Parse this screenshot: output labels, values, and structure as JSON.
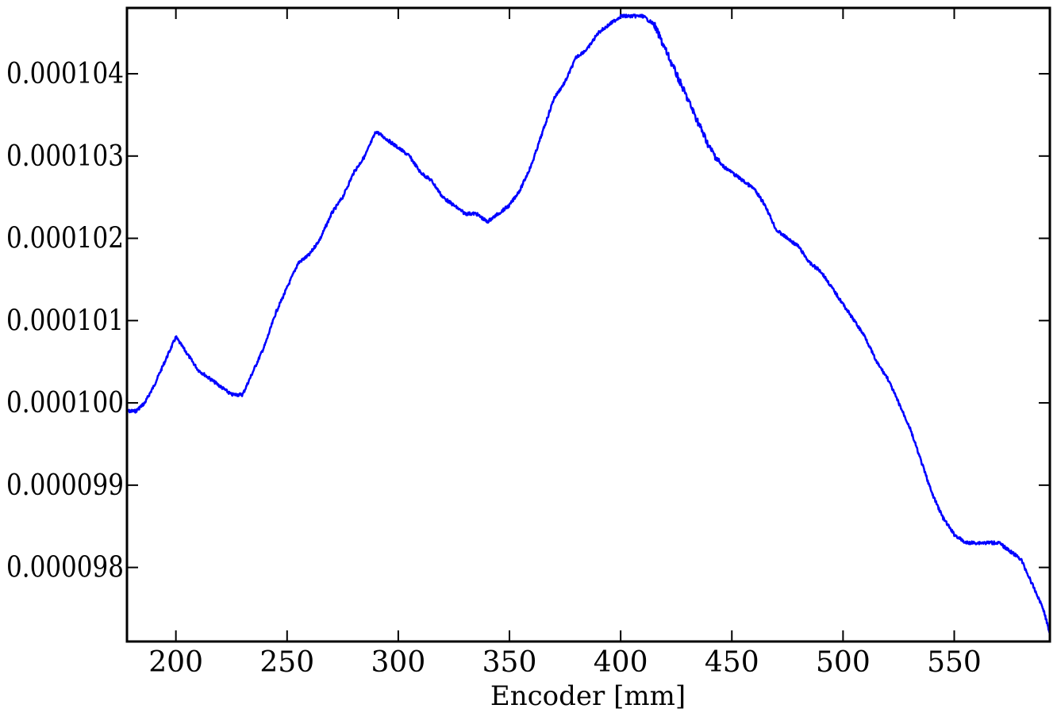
{
  "chart_data": {
    "type": "line",
    "title": "",
    "xlabel": "Encoder [mm]",
    "ylabel": "",
    "xlim": [
      178,
      593
    ],
    "ylim": [
      9.71e-05,
      0.0001048
    ],
    "x_ticks": [
      {
        "value": 200,
        "label": "200"
      },
      {
        "value": 250,
        "label": "250"
      },
      {
        "value": 300,
        "label": "300"
      },
      {
        "value": 350,
        "label": "350"
      },
      {
        "value": 400,
        "label": "400"
      },
      {
        "value": 450,
        "label": "450"
      },
      {
        "value": 500,
        "label": "500"
      },
      {
        "value": 550,
        "label": "550"
      }
    ],
    "y_ticks": [
      {
        "value": 9.8e-05,
        "label": "0.000098"
      },
      {
        "value": 9.9e-05,
        "label": "0.000099"
      },
      {
        "value": 0.0001,
        "label": "0.000100"
      },
      {
        "value": 0.000101,
        "label": "0.000101"
      },
      {
        "value": 0.000102,
        "label": "0.000102"
      },
      {
        "value": 0.000103,
        "label": "0.000103"
      },
      {
        "value": 0.000104,
        "label": "0.000104"
      }
    ],
    "grid": false,
    "legend": "none",
    "series": [
      {
        "color": "#0000ff",
        "x": [
          178,
          182,
          186,
          190,
          195,
          200,
          205,
          210,
          215,
          220,
          225,
          230,
          235,
          240,
          245,
          250,
          255,
          260,
          265,
          270,
          275,
          280,
          285,
          290,
          295,
          300,
          305,
          310,
          315,
          320,
          325,
          330,
          335,
          340,
          345,
          350,
          355,
          360,
          365,
          370,
          375,
          380,
          385,
          390,
          395,
          400,
          405,
          410,
          415,
          420,
          425,
          430,
          435,
          440,
          445,
          450,
          455,
          460,
          465,
          470,
          475,
          480,
          485,
          490,
          495,
          500,
          505,
          510,
          515,
          520,
          525,
          530,
          535,
          540,
          545,
          550,
          555,
          560,
          565,
          570,
          575,
          580,
          585,
          590,
          593
        ],
        "y": [
          9.99e-05,
          9.99e-05,
          0.0001,
          0.0001002,
          0.0001005,
          0.0001008,
          0.0001006,
          0.0001004,
          0.0001003,
          0.0001002,
          0.0001001,
          0.0001001,
          0.0001004,
          0.0001007,
          0.0001011,
          0.0001014,
          0.0001017,
          0.0001018,
          0.000102,
          0.0001023,
          0.0001025,
          0.0001028,
          0.000103,
          0.0001033,
          0.0001032,
          0.0001031,
          0.000103,
          0.0001028,
          0.0001027,
          0.0001025,
          0.0001024,
          0.0001023,
          0.0001023,
          0.0001022,
          0.0001023,
          0.0001024,
          0.0001026,
          0.0001029,
          0.0001033,
          0.0001037,
          0.0001039,
          0.0001042,
          0.0001043,
          0.0001045,
          0.0001046,
          0.0001047,
          0.0001047,
          0.0001047,
          0.0001046,
          0.0001043,
          0.000104,
          0.0001037,
          0.0001034,
          0.0001031,
          0.0001029,
          0.0001028,
          0.0001027,
          0.0001026,
          0.0001024,
          0.0001021,
          0.000102,
          0.0001019,
          0.0001017,
          0.0001016,
          0.0001014,
          0.0001012,
          0.000101,
          0.0001008,
          0.0001005,
          0.0001003,
          0.0001,
          9.97e-05,
          9.93e-05,
          9.89e-05,
          9.86e-05,
          9.84e-05,
          9.83e-05,
          9.83e-05,
          9.83e-05,
          9.83e-05,
          9.82e-05,
          9.81e-05,
          9.78e-05,
          9.75e-05,
          9.72e-05
        ]
      }
    ]
  }
}
